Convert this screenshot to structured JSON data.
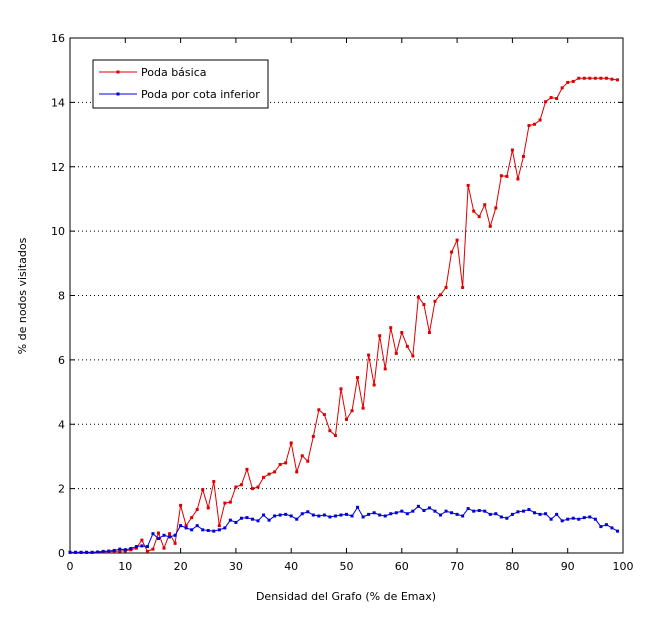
{
  "chart_data": {
    "type": "line",
    "xlabel": "Densidad del Grafo (% de Emax)",
    "ylabel": "% de nodos visitados",
    "xlim": [
      0,
      100
    ],
    "ylim": [
      0,
      16
    ],
    "xticks": [
      0,
      10,
      20,
      30,
      40,
      50,
      60,
      70,
      80,
      90,
      100
    ],
    "yticks": [
      0,
      2,
      4,
      6,
      8,
      10,
      12,
      14,
      16
    ],
    "grid": "horizontal dotted",
    "legend_position": "top-left",
    "x": [
      0,
      1,
      2,
      3,
      4,
      5,
      6,
      7,
      8,
      9,
      10,
      11,
      12,
      13,
      14,
      15,
      16,
      17,
      18,
      19,
      20,
      21,
      22,
      23,
      24,
      25,
      26,
      27,
      28,
      29,
      30,
      31,
      32,
      33,
      34,
      35,
      36,
      37,
      38,
      39,
      40,
      41,
      42,
      43,
      44,
      45,
      46,
      47,
      48,
      49,
      50,
      51,
      52,
      53,
      54,
      55,
      56,
      57,
      58,
      59,
      60,
      61,
      62,
      63,
      64,
      65,
      66,
      67,
      68,
      69,
      70,
      71,
      72,
      73,
      74,
      75,
      76,
      77,
      78,
      79,
      80,
      81,
      82,
      83,
      84,
      85,
      86,
      87,
      88,
      89,
      90,
      91,
      92,
      93,
      94,
      95,
      96,
      97,
      98,
      99
    ],
    "series": [
      {
        "name": "Poda básica",
        "color": "#dd0000",
        "values": [
          0.02,
          0.02,
          0.02,
          0.02,
          0.02,
          0.03,
          0.04,
          0.04,
          0.05,
          0.06,
          0.07,
          0.1,
          0.15,
          0.4,
          0.05,
          0.12,
          0.62,
          0.15,
          0.6,
          0.3,
          1.48,
          0.85,
          1.1,
          1.35,
          1.97,
          1.4,
          2.22,
          0.85,
          1.55,
          1.58,
          2.05,
          2.12,
          2.6,
          2.0,
          2.05,
          2.35,
          2.45,
          2.52,
          2.75,
          2.8,
          3.42,
          2.52,
          3.02,
          2.85,
          3.62,
          4.45,
          4.3,
          3.8,
          3.65,
          5.1,
          4.15,
          4.42,
          5.45,
          4.5,
          6.15,
          5.22,
          6.75,
          5.72,
          7.0,
          6.2,
          6.85,
          6.42,
          6.12,
          7.95,
          7.72,
          6.85,
          7.82,
          8.02,
          8.25,
          9.35,
          9.72,
          8.25,
          11.42,
          10.62,
          10.45,
          10.82,
          10.15,
          10.72,
          11.72,
          11.7,
          12.52,
          11.62,
          12.32,
          13.28,
          13.32,
          13.45,
          14.02,
          14.15,
          14.12,
          14.45,
          14.62,
          14.65,
          14.75,
          14.75,
          14.75,
          14.75,
          14.75,
          14.75,
          14.72,
          14.7
        ]
      },
      {
        "name": "Poda por cota inferior",
        "color": "#0000dd",
        "values": [
          0.02,
          0.02,
          0.02,
          0.02,
          0.02,
          0.03,
          0.05,
          0.06,
          0.08,
          0.12,
          0.1,
          0.14,
          0.2,
          0.22,
          0.2,
          0.6,
          0.45,
          0.55,
          0.5,
          0.55,
          0.85,
          0.78,
          0.72,
          0.85,
          0.72,
          0.7,
          0.68,
          0.72,
          0.78,
          1.02,
          0.95,
          1.08,
          1.1,
          1.05,
          1.0,
          1.18,
          1.02,
          1.15,
          1.18,
          1.2,
          1.15,
          1.05,
          1.22,
          1.28,
          1.18,
          1.15,
          1.18,
          1.12,
          1.15,
          1.18,
          1.2,
          1.15,
          1.42,
          1.12,
          1.2,
          1.25,
          1.18,
          1.15,
          1.22,
          1.25,
          1.3,
          1.22,
          1.3,
          1.45,
          1.32,
          1.4,
          1.3,
          1.18,
          1.3,
          1.25,
          1.2,
          1.15,
          1.38,
          1.3,
          1.32,
          1.3,
          1.2,
          1.22,
          1.12,
          1.08,
          1.2,
          1.28,
          1.3,
          1.35,
          1.25,
          1.2,
          1.22,
          1.05,
          1.2,
          1.0,
          1.05,
          1.08,
          1.05,
          1.1,
          1.12,
          1.05,
          0.82,
          0.88,
          0.78,
          0.68
        ]
      }
    ]
  }
}
